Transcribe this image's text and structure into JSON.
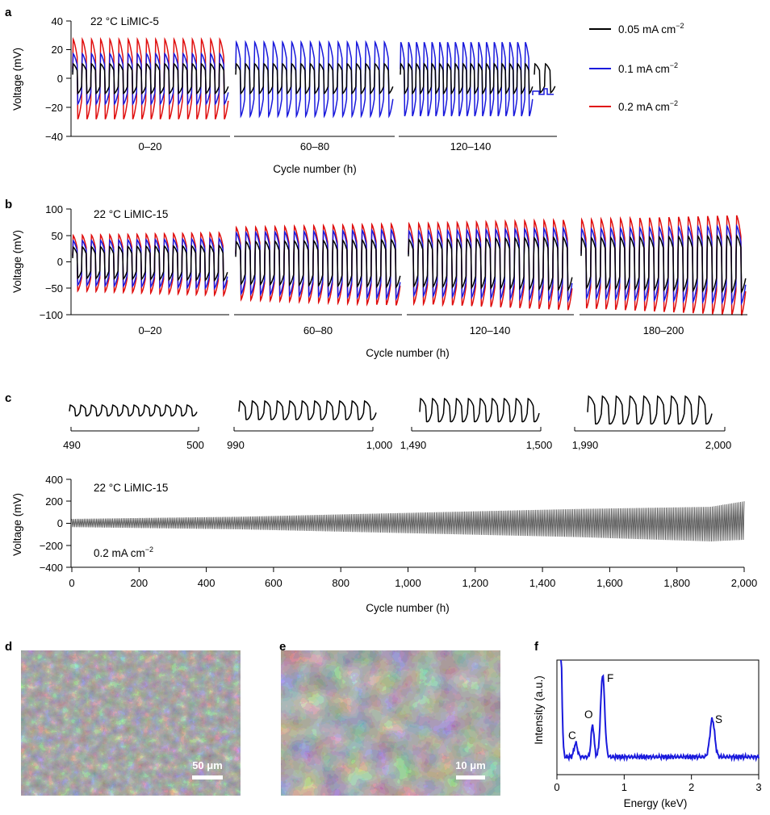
{
  "colors": {
    "c005": "#000000",
    "c01": "#1a1adc",
    "c02": "#e01010",
    "longterm": "#555555",
    "eds": "#1a1adc"
  },
  "legend": [
    {
      "label": "0.05 mA cm",
      "sup": "−2",
      "color": "#000000"
    },
    {
      "label": "0.1 mA cm",
      "sup": "−2",
      "color": "#1a1adc"
    },
    {
      "label": "0.2 mA cm",
      "sup": "−2",
      "color": "#e01010"
    }
  ],
  "panels": {
    "a": {
      "label": "a",
      "annotation": "22 °C  LiMIC-5",
      "ylabel": "Voltage (mV)",
      "xlabel": "Cycle number (h)",
      "yticks": [
        "40",
        "20",
        "0",
        "−20",
        "−40"
      ],
      "segments": [
        "0–20",
        "60–80",
        "120–140"
      ]
    },
    "b": {
      "label": "b",
      "annotation": "22 °C  LiMIC-15",
      "ylabel": "Voltage (mV)",
      "xlabel": "Cycle number (h)",
      "yticks": [
        "100",
        "50",
        "0",
        "−50",
        "−100"
      ],
      "segments": [
        "0–20",
        "60–80",
        "120–140",
        "180–200"
      ]
    },
    "c": {
      "label": "c",
      "annotation": "22 °C  LiMIC-15",
      "current": "0.2 mA cm",
      "current_sup": "−2",
      "ylabel": "Voltage (mV)",
      "xlabel": "Cycle number (h)",
      "insets": [
        {
          "from": "490",
          "to": "500"
        },
        {
          "from": "990",
          "to": "1,000"
        },
        {
          "from": "1,490",
          "to": "1,500"
        },
        {
          "from": "1,990",
          "to": "2,000"
        }
      ],
      "yticks": [
        "400",
        "200",
        "0",
        "−200",
        "−400"
      ],
      "xticks": [
        "0",
        "200",
        "400",
        "600",
        "800",
        "1,000",
        "1,200",
        "1,400",
        "1,600",
        "1,800",
        "2,000"
      ]
    },
    "d": {
      "label": "d",
      "scalebar": "50 μm"
    },
    "e": {
      "label": "e",
      "scalebar": "10 μm"
    },
    "f": {
      "label": "f",
      "ylabel": "Intensity (a.u.)",
      "xlabel": "Energy (keV)",
      "xticks": [
        "0",
        "1",
        "2",
        "3"
      ],
      "peaks": [
        "C",
        "O",
        "F",
        "S"
      ]
    }
  },
  "chart_data": [
    {
      "panel": "a",
      "type": "line",
      "xlabel": "Cycle number (h)",
      "ylabel": "Voltage (mV)",
      "ylim": [
        -40,
        40
      ],
      "segments": [
        "0–20",
        "60–80",
        "120–140"
      ],
      "series": [
        {
          "name": "0.05 mA cm−2",
          "amplitude": [
            10,
            10,
            10
          ]
        },
        {
          "name": "0.1 mA cm−2",
          "amplitude": [
            17,
            25,
            25
          ]
        },
        {
          "name": "0.2 mA cm−2",
          "amplitude": [
            27,
            null,
            null
          ]
        }
      ]
    },
    {
      "panel": "b",
      "type": "line",
      "xlabel": "Cycle number (h)",
      "ylabel": "Voltage (mV)",
      "ylim": [
        -100,
        100
      ],
      "segments": [
        "0–20",
        "60–80",
        "120–140",
        "180–200"
      ],
      "series": [
        {
          "name": "0.05 mA cm−2",
          "amplitude": [
            28,
            38,
            42,
            45
          ]
        },
        {
          "name": "0.1 mA cm−2",
          "amplitude": [
            40,
            55,
            58,
            62
          ]
        },
        {
          "name": "0.2 mA cm−2",
          "amplitude": [
            50,
            65,
            72,
            80
          ]
        }
      ]
    },
    {
      "panel": "c",
      "type": "line",
      "xlabel": "Cycle number (h)",
      "ylabel": "Voltage (mV)",
      "ylim": [
        -400,
        400
      ],
      "xlim": [
        0,
        2000
      ],
      "series": [
        {
          "name": "0.2 mA cm−2",
          "x": [
            0,
            500,
            1000,
            1500,
            1900,
            2000
          ],
          "upper": [
            40,
            60,
            95,
            130,
            150,
            200
          ],
          "lower": [
            -35,
            -55,
            -90,
            -125,
            -165,
            -150
          ]
        }
      ]
    },
    {
      "panel": "f",
      "type": "line",
      "xlabel": "Energy (keV)",
      "ylabel": "Intensity (a.u.)",
      "xlim": [
        0,
        3
      ],
      "peaks": [
        {
          "label": "C",
          "x": 0.28,
          "rel": 0.12
        },
        {
          "label": "O",
          "x": 0.53,
          "rel": 0.28
        },
        {
          "label": "F",
          "x": 0.68,
          "rel": 0.72
        },
        {
          "label": "S",
          "x": 2.31,
          "rel": 0.33
        }
      ]
    }
  ]
}
